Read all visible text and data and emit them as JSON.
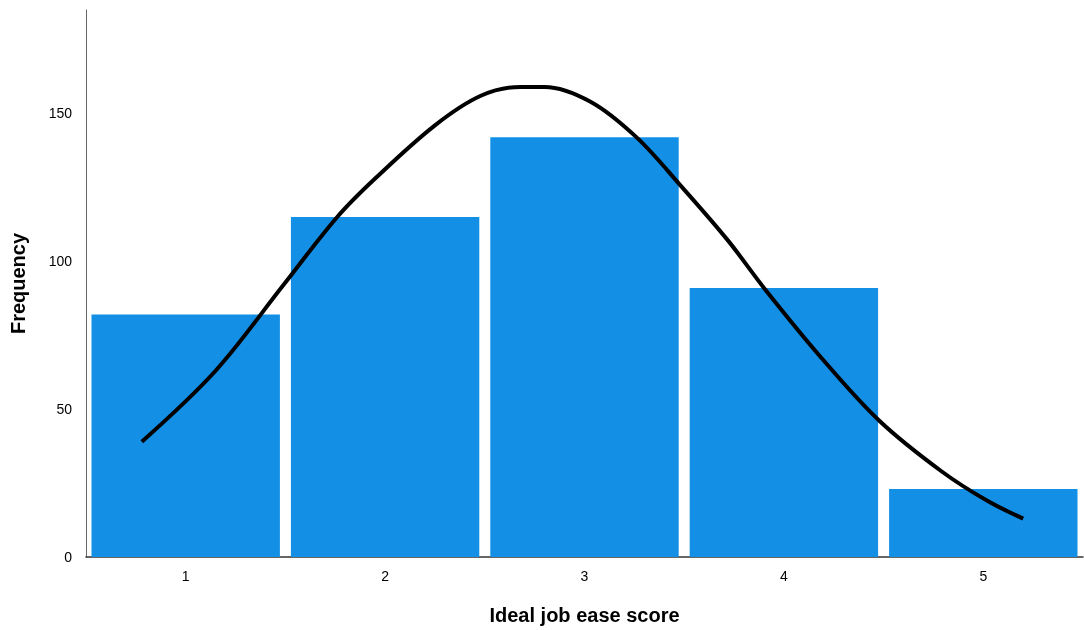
{
  "chart_data": {
    "type": "histogram",
    "xlabel": "Ideal job ease score",
    "ylabel": "Frequency",
    "bins": [
      0.5,
      1.5,
      2.5,
      3.5,
      4.5,
      5.5
    ],
    "series": [
      {
        "type": "histogram",
        "color": "#1390e6",
        "values": [
          82,
          115,
          142,
          91,
          23
        ]
      },
      {
        "type": "line",
        "color": "#000000",
        "x": [
          0.78,
          1.15,
          1.49,
          1.76,
          1.95,
          2.25,
          2.48,
          2.68,
          2.8,
          3.03,
          3.26,
          3.49,
          3.72,
          3.9,
          4.18,
          4.48,
          4.79,
          5.02,
          5.2
        ],
        "values": [
          39,
          63,
          92,
          115,
          128,
          146,
          156,
          159,
          159,
          154,
          142,
          125,
          107,
          91,
          68,
          46,
          29,
          19,
          13
        ]
      }
    ],
    "xlim": [
      0.5,
      5.5
    ],
    "xticks": [
      1,
      2,
      3,
      4,
      5
    ],
    "ylim": [
      0,
      185
    ],
    "yticks": [
      0,
      50,
      100,
      150
    ],
    "grid": false,
    "marker": "none"
  }
}
